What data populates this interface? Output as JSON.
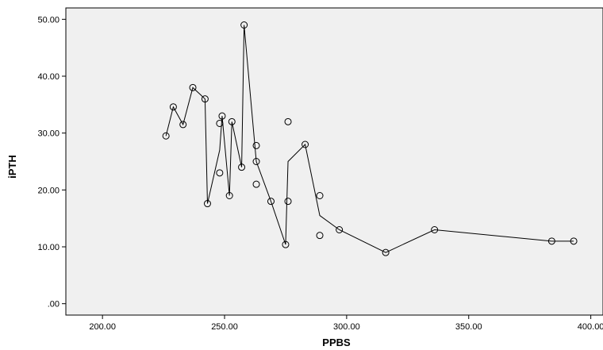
{
  "chart_data": {
    "type": "scatter",
    "title": "",
    "xlabel": "PPBS",
    "ylabel": "iPTH",
    "xlim": [
      185,
      405
    ],
    "ylim": [
      -2,
      52
    ],
    "xticks": [
      200,
      250,
      300,
      350,
      400
    ],
    "yticks": [
      0,
      10,
      20,
      30,
      40,
      50
    ],
    "xtick_labels": [
      "200.00",
      "250.00",
      "300.00",
      "350.00",
      "400.00"
    ],
    "ytick_labels": [
      ".00",
      "10.00",
      "20.00",
      "30.00",
      "40.00",
      "50.00"
    ],
    "grid": false,
    "background": "#f0f0f0",
    "series": [
      {
        "marker": "circle-open",
        "points": [
          [
            226,
            29.5
          ],
          [
            229,
            34.6
          ],
          [
            233,
            31.5
          ],
          [
            237,
            38.0
          ],
          [
            242,
            36.0
          ],
          [
            243,
            17.6
          ],
          [
            248,
            31.7
          ],
          [
            248,
            23.0
          ],
          [
            249,
            33.0
          ],
          [
            252,
            19.0
          ],
          [
            253,
            32.0
          ],
          [
            257,
            24.0
          ],
          [
            258,
            49.0
          ],
          [
            263,
            27.8
          ],
          [
            263,
            25.0
          ],
          [
            263,
            21.0
          ],
          [
            269,
            18.0
          ],
          [
            275,
            10.4
          ],
          [
            276,
            32.0
          ],
          [
            276,
            18.0
          ],
          [
            283,
            28.0
          ],
          [
            289,
            19.0
          ],
          [
            289,
            12.0
          ],
          [
            297,
            13.0
          ],
          [
            316,
            9.0
          ],
          [
            336,
            13.0
          ],
          [
            384,
            11.0
          ],
          [
            393,
            11.0
          ]
        ]
      }
    ],
    "fit_line": [
      [
        226,
        29.5
      ],
      [
        229,
        34.6
      ],
      [
        233,
        31.5
      ],
      [
        237,
        38.0
      ],
      [
        242,
        36.0
      ],
      [
        243,
        17.6
      ],
      [
        248,
        27.0
      ],
      [
        249,
        33.0
      ],
      [
        252,
        19.0
      ],
      [
        253,
        32.0
      ],
      [
        257,
        24.0
      ],
      [
        258,
        49.0
      ],
      [
        263,
        25.0
      ],
      [
        269,
        18.0
      ],
      [
        275,
        10.4
      ],
      [
        276,
        25.0
      ],
      [
        283,
        28.0
      ],
      [
        289,
        15.5
      ],
      [
        297,
        13.0
      ],
      [
        316,
        9.0
      ],
      [
        336,
        13.0
      ],
      [
        384,
        11.0
      ],
      [
        393,
        11.0
      ]
    ]
  }
}
